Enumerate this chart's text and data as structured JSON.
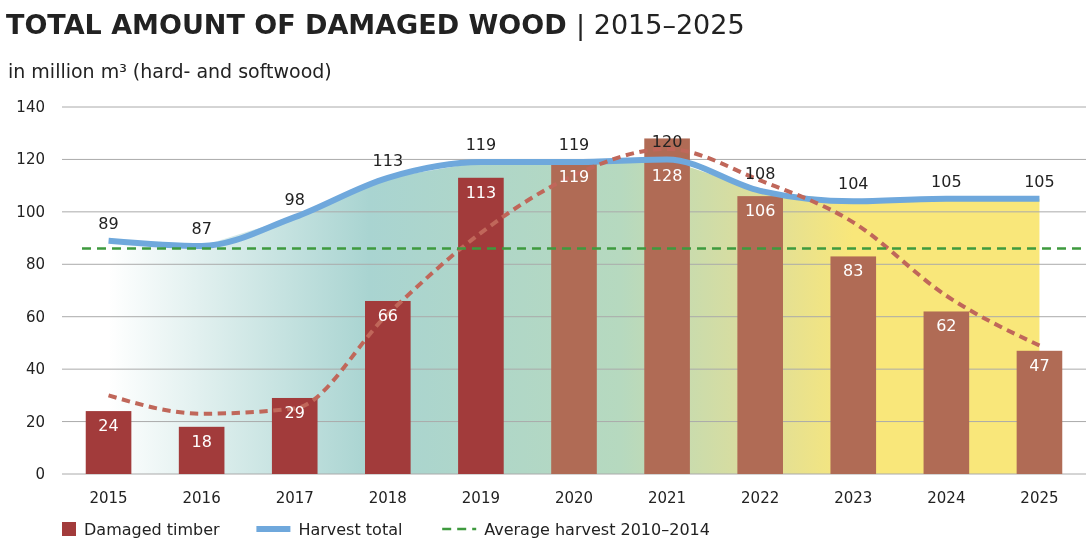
{
  "chart_data": {
    "type": "bar",
    "title": "TOTAL AMOUNT OF DAMAGED WOOD | 2015–2025",
    "subtitle": "in million m³  (hard- and softwood)",
    "categories": [
      "2015",
      "2016",
      "2017",
      "2018",
      "2019",
      "2020",
      "2021",
      "2022",
      "2023",
      "2024",
      "2025"
    ],
    "series": [
      {
        "name": "Damaged timber",
        "color": "#a23b3b",
        "colors": [
          "#a23b3b",
          "#a23b3b",
          "#a23b3b",
          "#a23b3b",
          "#a23b3b",
          "#b06b55",
          "#b06b55",
          "#b06b55",
          "#b06b55",
          "#b06b55",
          "#b06b55"
        ],
        "values": [
          24,
          18,
          29,
          66,
          113,
          119,
          128,
          106,
          83,
          62,
          47
        ],
        "value_labels": [
          "24",
          "18",
          "29",
          "66",
          "113",
          "119",
          "128",
          "106",
          "83",
          "62",
          "47"
        ]
      },
      {
        "name": "Harvest total",
        "type": "area",
        "color": "#6fa8dc",
        "values": [
          89,
          87,
          98,
          113,
          119,
          119,
          120,
          108,
          104,
          105,
          105
        ],
        "value_labels": [
          "89",
          "87",
          "98",
          "113",
          "119",
          "119",
          "120",
          "108",
          "104",
          "105",
          "105"
        ]
      },
      {
        "type": "line",
        "color": "#c0675a",
        "line_style": "dashed",
        "values": [
          30,
          23,
          25,
          61,
          92,
          114,
          124,
          112,
          96,
          68,
          49
        ]
      }
    ],
    "ref_lines": [
      {
        "axis": "y",
        "value": 86,
        "label": "Average harvest 2010–2014",
        "color": "#3e9a3e",
        "line_style": "dashed"
      }
    ],
    "ylim": [
      0,
      140
    ],
    "yticks": [
      0,
      20,
      40,
      60,
      80,
      100,
      120,
      140
    ],
    "grid": "y",
    "legend": "bottom left"
  }
}
